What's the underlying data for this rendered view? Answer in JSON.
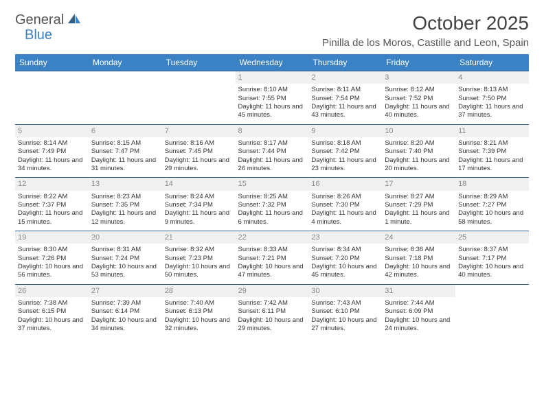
{
  "brand": {
    "part1": "General",
    "part2": "Blue"
  },
  "title": "October 2025",
  "location": "Pinilla de los Moros, Castille and Leon, Spain",
  "dayNames": [
    "Sunday",
    "Monday",
    "Tuesday",
    "Wednesday",
    "Thursday",
    "Friday",
    "Saturday"
  ],
  "colors": {
    "headerBg": "#3b82c4",
    "headerText": "#ffffff",
    "rowDivider": "#2d5f8e",
    "dayNumBg": "#f0f0f0",
    "dayNumText": "#888888",
    "bodyText": "#333333",
    "titleText": "#444444"
  },
  "firstDayOffset": 3,
  "days": [
    {
      "n": "1",
      "sunrise": "8:10 AM",
      "sunset": "7:55 PM",
      "daylight": "11 hours and 45 minutes."
    },
    {
      "n": "2",
      "sunrise": "8:11 AM",
      "sunset": "7:54 PM",
      "daylight": "11 hours and 43 minutes."
    },
    {
      "n": "3",
      "sunrise": "8:12 AM",
      "sunset": "7:52 PM",
      "daylight": "11 hours and 40 minutes."
    },
    {
      "n": "4",
      "sunrise": "8:13 AM",
      "sunset": "7:50 PM",
      "daylight": "11 hours and 37 minutes."
    },
    {
      "n": "5",
      "sunrise": "8:14 AM",
      "sunset": "7:49 PM",
      "daylight": "11 hours and 34 minutes."
    },
    {
      "n": "6",
      "sunrise": "8:15 AM",
      "sunset": "7:47 PM",
      "daylight": "11 hours and 31 minutes."
    },
    {
      "n": "7",
      "sunrise": "8:16 AM",
      "sunset": "7:45 PM",
      "daylight": "11 hours and 29 minutes."
    },
    {
      "n": "8",
      "sunrise": "8:17 AM",
      "sunset": "7:44 PM",
      "daylight": "11 hours and 26 minutes."
    },
    {
      "n": "9",
      "sunrise": "8:18 AM",
      "sunset": "7:42 PM",
      "daylight": "11 hours and 23 minutes."
    },
    {
      "n": "10",
      "sunrise": "8:20 AM",
      "sunset": "7:40 PM",
      "daylight": "11 hours and 20 minutes."
    },
    {
      "n": "11",
      "sunrise": "8:21 AM",
      "sunset": "7:39 PM",
      "daylight": "11 hours and 17 minutes."
    },
    {
      "n": "12",
      "sunrise": "8:22 AM",
      "sunset": "7:37 PM",
      "daylight": "11 hours and 15 minutes."
    },
    {
      "n": "13",
      "sunrise": "8:23 AM",
      "sunset": "7:35 PM",
      "daylight": "11 hours and 12 minutes."
    },
    {
      "n": "14",
      "sunrise": "8:24 AM",
      "sunset": "7:34 PM",
      "daylight": "11 hours and 9 minutes."
    },
    {
      "n": "15",
      "sunrise": "8:25 AM",
      "sunset": "7:32 PM",
      "daylight": "11 hours and 6 minutes."
    },
    {
      "n": "16",
      "sunrise": "8:26 AM",
      "sunset": "7:30 PM",
      "daylight": "11 hours and 4 minutes."
    },
    {
      "n": "17",
      "sunrise": "8:27 AM",
      "sunset": "7:29 PM",
      "daylight": "11 hours and 1 minute."
    },
    {
      "n": "18",
      "sunrise": "8:29 AM",
      "sunset": "7:27 PM",
      "daylight": "10 hours and 58 minutes."
    },
    {
      "n": "19",
      "sunrise": "8:30 AM",
      "sunset": "7:26 PM",
      "daylight": "10 hours and 56 minutes."
    },
    {
      "n": "20",
      "sunrise": "8:31 AM",
      "sunset": "7:24 PM",
      "daylight": "10 hours and 53 minutes."
    },
    {
      "n": "21",
      "sunrise": "8:32 AM",
      "sunset": "7:23 PM",
      "daylight": "10 hours and 50 minutes."
    },
    {
      "n": "22",
      "sunrise": "8:33 AM",
      "sunset": "7:21 PM",
      "daylight": "10 hours and 47 minutes."
    },
    {
      "n": "23",
      "sunrise": "8:34 AM",
      "sunset": "7:20 PM",
      "daylight": "10 hours and 45 minutes."
    },
    {
      "n": "24",
      "sunrise": "8:36 AM",
      "sunset": "7:18 PM",
      "daylight": "10 hours and 42 minutes."
    },
    {
      "n": "25",
      "sunrise": "8:37 AM",
      "sunset": "7:17 PM",
      "daylight": "10 hours and 40 minutes."
    },
    {
      "n": "26",
      "sunrise": "7:38 AM",
      "sunset": "6:15 PM",
      "daylight": "10 hours and 37 minutes."
    },
    {
      "n": "27",
      "sunrise": "7:39 AM",
      "sunset": "6:14 PM",
      "daylight": "10 hours and 34 minutes."
    },
    {
      "n": "28",
      "sunrise": "7:40 AM",
      "sunset": "6:13 PM",
      "daylight": "10 hours and 32 minutes."
    },
    {
      "n": "29",
      "sunrise": "7:42 AM",
      "sunset": "6:11 PM",
      "daylight": "10 hours and 29 minutes."
    },
    {
      "n": "30",
      "sunrise": "7:43 AM",
      "sunset": "6:10 PM",
      "daylight": "10 hours and 27 minutes."
    },
    {
      "n": "31",
      "sunrise": "7:44 AM",
      "sunset": "6:09 PM",
      "daylight": "10 hours and 24 minutes."
    }
  ],
  "labels": {
    "sunrise": "Sunrise:",
    "sunset": "Sunset:",
    "daylight": "Daylight:"
  }
}
